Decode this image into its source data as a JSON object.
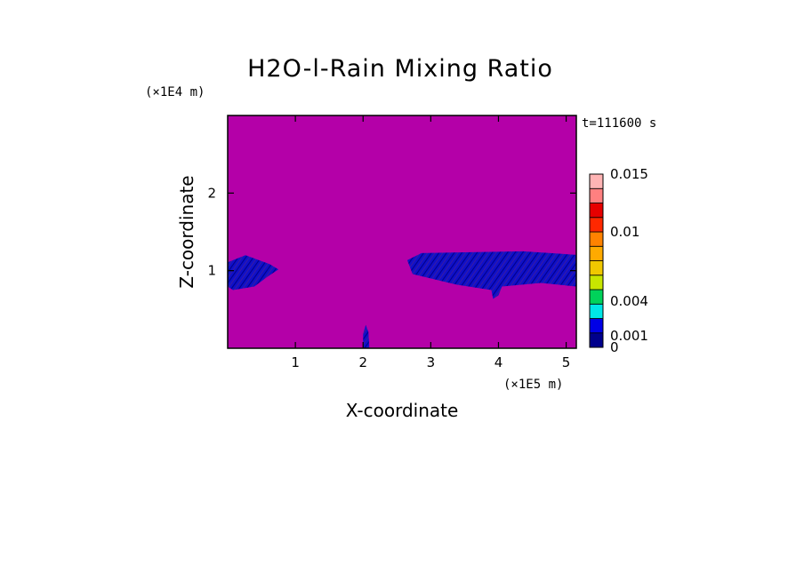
{
  "chart_data": {
    "type": "heatmap",
    "title": "H2O-l-Rain Mixing Ratio",
    "xlabel": "X-coordinate",
    "ylabel": "Z-coordinate",
    "x_scale_label": "(×1E5 m)",
    "y_scale_label": "(×1E4 m)",
    "time_label": "t=111600 s",
    "xlim": [
      0,
      5.15
    ],
    "ylim": [
      0,
      3.0
    ],
    "x_ticks": [
      {
        "v": 1,
        "label": "1"
      },
      {
        "v": 2,
        "label": "2"
      },
      {
        "v": 3,
        "label": "3"
      },
      {
        "v": 4,
        "label": "4"
      },
      {
        "v": 5,
        "label": "5"
      }
    ],
    "y_ticks": [
      {
        "v": 1,
        "label": "1"
      },
      {
        "v": 2,
        "label": "2"
      }
    ],
    "background_value": 0.001,
    "colorbar": {
      "min": 0,
      "max": 0.015,
      "labels": [
        {
          "v": 0.015,
          "label": "0.015"
        },
        {
          "v": 0.01,
          "label": "0.01"
        },
        {
          "v": 0.004,
          "label": "0.004"
        },
        {
          "v": 0.001,
          "label": "0.001"
        },
        {
          "v": 0,
          "label": "0"
        }
      ],
      "colors": [
        "#00008c",
        "#0000e6",
        "#00e6e6",
        "#00d25a",
        "#c8e600",
        "#f0c800",
        "#ffaa00",
        "#ff8200",
        "#ff2800",
        "#e60000",
        "#ff8080",
        "#ffb4b4"
      ],
      "plot_fill": "#b400a8"
    },
    "features": [
      {
        "name": "left-band",
        "x_range": [
          0,
          0.75
        ],
        "z_range": [
          0.75,
          1.2
        ],
        "value": 0.0005
      },
      {
        "name": "right-band",
        "x_range": [
          2.6,
          5.15
        ],
        "z_range": [
          0.75,
          1.25
        ],
        "value": 0.0005
      },
      {
        "name": "spike",
        "x_range": [
          1.98,
          2.1
        ],
        "z_range": [
          0,
          0.3
        ],
        "value": 0.0005
      }
    ]
  }
}
